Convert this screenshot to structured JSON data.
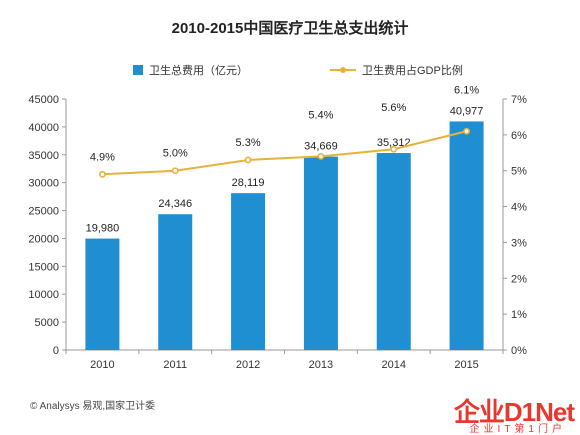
{
  "chart_data": {
    "type": "bar",
    "title": "2010-2015中国医疗卫生总支出统计",
    "categories": [
      "2010",
      "2011",
      "2012",
      "2013",
      "2014",
      "2015"
    ],
    "series": [
      {
        "name": "卫生总费用（亿元）",
        "type": "bar",
        "axis": "left",
        "values": [
          19980,
          24346,
          28119,
          34669,
          35312,
          40977
        ],
        "labels": [
          "19,980",
          "24,346",
          "28,119",
          "34,669",
          "35,312",
          "40,977"
        ],
        "color": "#1f8fd1"
      },
      {
        "name": "卫生费用占GDP比例",
        "type": "line",
        "axis": "right",
        "values": [
          4.9,
          5.0,
          5.3,
          5.4,
          5.6,
          6.1
        ],
        "labels": [
          "4.9%",
          "5.0%",
          "5.3%",
          "5.4%",
          "5.6%",
          "6.1%"
        ],
        "color": "#e8b23a"
      }
    ],
    "ylim_left": [
      0,
      45000
    ],
    "yticks_left": [
      "0",
      "5000",
      "10000",
      "15000",
      "20000",
      "25000",
      "30000",
      "35000",
      "40000",
      "45000"
    ],
    "ylim_right": [
      0,
      7
    ],
    "yticks_right": [
      "0%",
      "1%",
      "2%",
      "3%",
      "4%",
      "5%",
      "6%",
      "7%"
    ],
    "legend_position": "top",
    "grid": false
  },
  "footer": {
    "source": "© Analysys 易观,国家卫计委"
  },
  "watermark": {
    "logo": "企业D1Net",
    "sub": "企业IT第1门户"
  }
}
